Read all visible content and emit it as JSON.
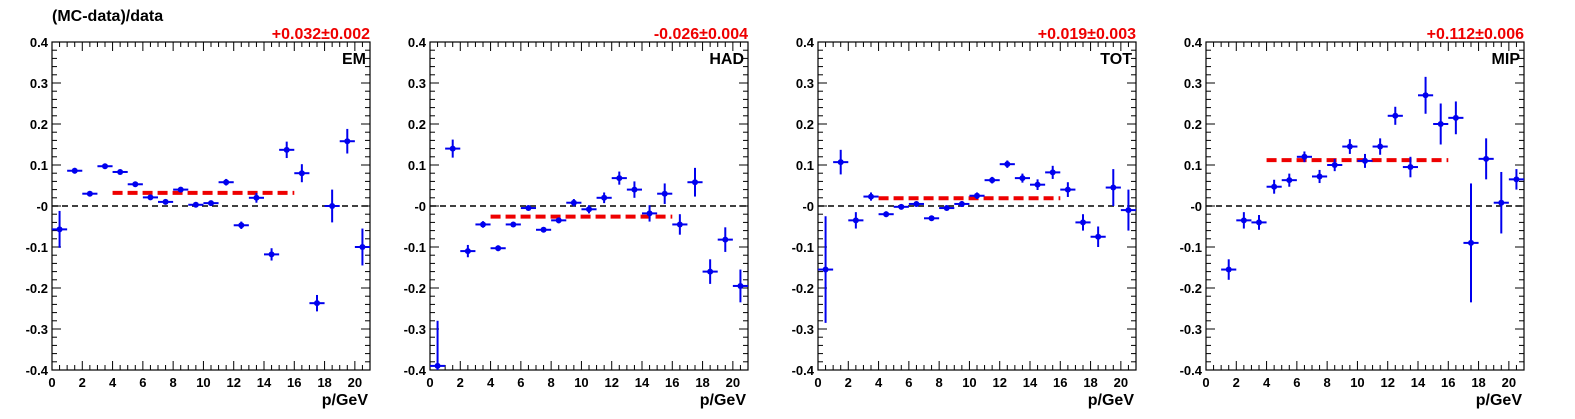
{
  "figure": {
    "ylabel": "(MC-data)/data"
  },
  "chart_data": [
    {
      "type": "scatter",
      "label": "EM",
      "fit_text": "+0.032±0.002",
      "fit_value": 0.032,
      "fit_range": [
        4,
        16
      ],
      "xlabel": "p/GeV",
      "xlim": [
        0,
        21
      ],
      "ylim": [
        -0.4,
        0.4
      ],
      "xticks": [
        0,
        2,
        4,
        6,
        8,
        10,
        12,
        14,
        16,
        18,
        20
      ],
      "yticks": [
        -0.4,
        -0.3,
        -0.2,
        -0.1,
        0,
        0.1,
        0.2,
        0.3,
        0.4
      ],
      "ytick_labels": [
        "-0.4",
        "-0.3",
        "-0.2",
        "-0.1",
        "-0",
        "0.1",
        "0.2",
        "0.3",
        "0.4"
      ],
      "points": [
        {
          "x": 0.5,
          "y": -0.057,
          "err": 0.045
        },
        {
          "x": 1.5,
          "y": 0.086,
          "err": 0.007
        },
        {
          "x": 2.5,
          "y": 0.03,
          "err": 0.006
        },
        {
          "x": 3.5,
          "y": 0.097,
          "err": 0.005
        },
        {
          "x": 4.5,
          "y": 0.083,
          "err": 0.005
        },
        {
          "x": 5.5,
          "y": 0.053,
          "err": 0.005
        },
        {
          "x": 6.5,
          "y": 0.021,
          "err": 0.005
        },
        {
          "x": 7.5,
          "y": 0.01,
          "err": 0.005
        },
        {
          "x": 8.5,
          "y": 0.04,
          "err": 0.005
        },
        {
          "x": 9.5,
          "y": 0.003,
          "err": 0.005
        },
        {
          "x": 10.5,
          "y": 0.007,
          "err": 0.006
        },
        {
          "x": 11.5,
          "y": 0.058,
          "err": 0.008
        },
        {
          "x": 12.5,
          "y": -0.047,
          "err": 0.009
        },
        {
          "x": 13.5,
          "y": 0.02,
          "err": 0.012
        },
        {
          "x": 14.5,
          "y": -0.118,
          "err": 0.015
        },
        {
          "x": 15.5,
          "y": 0.137,
          "err": 0.02
        },
        {
          "x": 16.5,
          "y": 0.08,
          "err": 0.022
        },
        {
          "x": 17.5,
          "y": -0.237,
          "err": 0.02
        },
        {
          "x": 18.5,
          "y": 0.0,
          "err": 0.04
        },
        {
          "x": 19.5,
          "y": 0.158,
          "err": 0.03
        },
        {
          "x": 20.5,
          "y": -0.1,
          "err": 0.045
        }
      ]
    },
    {
      "type": "scatter",
      "label": "HAD",
      "fit_text": "-0.026±0.004",
      "fit_value": -0.026,
      "fit_range": [
        4,
        16
      ],
      "xlabel": "p/GeV",
      "xlim": [
        0,
        21
      ],
      "ylim": [
        -0.4,
        0.4
      ],
      "xticks": [
        0,
        2,
        4,
        6,
        8,
        10,
        12,
        14,
        16,
        18,
        20
      ],
      "yticks": [
        -0.4,
        -0.3,
        -0.2,
        -0.1,
        0,
        0.1,
        0.2,
        0.3,
        0.4
      ],
      "ytick_labels": [
        "-0.4",
        "-0.3",
        "-0.2",
        "-0.1",
        "-0",
        "0.1",
        "0.2",
        "0.3",
        "0.4"
      ],
      "points": [
        {
          "x": 0.5,
          "y": -0.39,
          "err": 0.11
        },
        {
          "x": 1.5,
          "y": 0.14,
          "err": 0.022
        },
        {
          "x": 2.5,
          "y": -0.11,
          "err": 0.015
        },
        {
          "x": 3.5,
          "y": -0.045,
          "err": 0.008
        },
        {
          "x": 4.5,
          "y": -0.103,
          "err": 0.007
        },
        {
          "x": 5.5,
          "y": -0.045,
          "err": 0.006
        },
        {
          "x": 6.5,
          "y": -0.005,
          "err": 0.006
        },
        {
          "x": 7.5,
          "y": -0.058,
          "err": 0.006
        },
        {
          "x": 8.5,
          "y": -0.035,
          "err": 0.007
        },
        {
          "x": 9.5,
          "y": 0.008,
          "err": 0.009
        },
        {
          "x": 10.5,
          "y": -0.008,
          "err": 0.01
        },
        {
          "x": 11.5,
          "y": 0.02,
          "err": 0.013
        },
        {
          "x": 12.5,
          "y": 0.068,
          "err": 0.016
        },
        {
          "x": 13.5,
          "y": 0.04,
          "err": 0.02
        },
        {
          "x": 14.5,
          "y": -0.018,
          "err": 0.02
        },
        {
          "x": 15.5,
          "y": 0.03,
          "err": 0.025
        },
        {
          "x": 16.5,
          "y": -0.045,
          "err": 0.025
        },
        {
          "x": 17.5,
          "y": 0.058,
          "err": 0.035
        },
        {
          "x": 18.5,
          "y": -0.16,
          "err": 0.03
        },
        {
          "x": 19.5,
          "y": -0.082,
          "err": 0.03
        },
        {
          "x": 20.5,
          "y": -0.195,
          "err": 0.04
        }
      ]
    },
    {
      "type": "scatter",
      "label": "TOT",
      "fit_text": "+0.019±0.003",
      "fit_value": 0.019,
      "fit_range": [
        4,
        16
      ],
      "xlabel": "p/GeV",
      "xlim": [
        0,
        21
      ],
      "ylim": [
        -0.4,
        0.4
      ],
      "xticks": [
        0,
        2,
        4,
        6,
        8,
        10,
        12,
        14,
        16,
        18,
        20
      ],
      "yticks": [
        -0.4,
        -0.3,
        -0.2,
        -0.1,
        0,
        0.1,
        0.2,
        0.3,
        0.4
      ],
      "ytick_labels": [
        "-0.4",
        "-0.3",
        "-0.2",
        "-0.1",
        "-0",
        "0.1",
        "0.2",
        "0.3",
        "0.4"
      ],
      "points": [
        {
          "x": 0.5,
          "y": -0.155,
          "err": 0.13
        },
        {
          "x": 1.5,
          "y": 0.107,
          "err": 0.03
        },
        {
          "x": 2.5,
          "y": -0.035,
          "err": 0.02
        },
        {
          "x": 3.5,
          "y": 0.023,
          "err": 0.01
        },
        {
          "x": 4.5,
          "y": -0.02,
          "err": 0.007
        },
        {
          "x": 5.5,
          "y": -0.002,
          "err": 0.006
        },
        {
          "x": 6.5,
          "y": 0.005,
          "err": 0.006
        },
        {
          "x": 7.5,
          "y": -0.03,
          "err": 0.006
        },
        {
          "x": 8.5,
          "y": -0.005,
          "err": 0.006
        },
        {
          "x": 9.5,
          "y": 0.005,
          "err": 0.007
        },
        {
          "x": 10.5,
          "y": 0.025,
          "err": 0.008
        },
        {
          "x": 11.5,
          "y": 0.063,
          "err": 0.008
        },
        {
          "x": 12.5,
          "y": 0.102,
          "err": 0.009
        },
        {
          "x": 13.5,
          "y": 0.068,
          "err": 0.011
        },
        {
          "x": 14.5,
          "y": 0.052,
          "err": 0.013
        },
        {
          "x": 15.5,
          "y": 0.082,
          "err": 0.016
        },
        {
          "x": 16.5,
          "y": 0.04,
          "err": 0.018
        },
        {
          "x": 17.5,
          "y": -0.04,
          "err": 0.02
        },
        {
          "x": 18.5,
          "y": -0.075,
          "err": 0.025
        },
        {
          "x": 19.5,
          "y": 0.045,
          "err": 0.045
        },
        {
          "x": 20.5,
          "y": -0.01,
          "err": 0.05
        }
      ]
    },
    {
      "type": "scatter",
      "label": "MIP",
      "fit_text": "+0.112±0.006",
      "fit_value": 0.112,
      "fit_range": [
        4,
        16
      ],
      "xlabel": "p/GeV",
      "xlim": [
        0,
        21
      ],
      "ylim": [
        -0.4,
        0.4
      ],
      "xticks": [
        0,
        2,
        4,
        6,
        8,
        10,
        12,
        14,
        16,
        18,
        20
      ],
      "yticks": [
        -0.4,
        -0.3,
        -0.2,
        -0.1,
        0,
        0.1,
        0.2,
        0.3,
        0.4
      ],
      "ytick_labels": [
        "-0.4",
        "-0.3",
        "-0.2",
        "-0.1",
        "-0",
        "0.1",
        "0.2",
        "0.3",
        "0.4"
      ],
      "points": [
        {
          "x": 1.5,
          "y": -0.155,
          "err": 0.025
        },
        {
          "x": 2.5,
          "y": -0.035,
          "err": 0.02
        },
        {
          "x": 3.5,
          "y": -0.04,
          "err": 0.018
        },
        {
          "x": 4.5,
          "y": 0.047,
          "err": 0.017
        },
        {
          "x": 5.5,
          "y": 0.063,
          "err": 0.016
        },
        {
          "x": 6.5,
          "y": 0.12,
          "err": 0.013
        },
        {
          "x": 7.5,
          "y": 0.072,
          "err": 0.016
        },
        {
          "x": 8.5,
          "y": 0.1,
          "err": 0.015
        },
        {
          "x": 9.5,
          "y": 0.145,
          "err": 0.018
        },
        {
          "x": 10.5,
          "y": 0.11,
          "err": 0.017
        },
        {
          "x": 11.5,
          "y": 0.145,
          "err": 0.02
        },
        {
          "x": 12.5,
          "y": 0.22,
          "err": 0.022
        },
        {
          "x": 13.5,
          "y": 0.095,
          "err": 0.025
        },
        {
          "x": 14.5,
          "y": 0.27,
          "err": 0.045
        },
        {
          "x": 15.5,
          "y": 0.2,
          "err": 0.05
        },
        {
          "x": 16.5,
          "y": 0.215,
          "err": 0.04
        },
        {
          "x": 17.5,
          "y": -0.09,
          "err": 0.145
        },
        {
          "x": 18.5,
          "y": 0.115,
          "err": 0.05
        },
        {
          "x": 19.5,
          "y": 0.008,
          "err": 0.075
        },
        {
          "x": 20.5,
          "y": 0.065,
          "err": 0.025
        }
      ]
    }
  ],
  "colors": {
    "points": "#0000ee",
    "fit": "#ee0000",
    "fit_text": "#ee0000",
    "zero_line": "#000000",
    "axis": "#000000"
  }
}
